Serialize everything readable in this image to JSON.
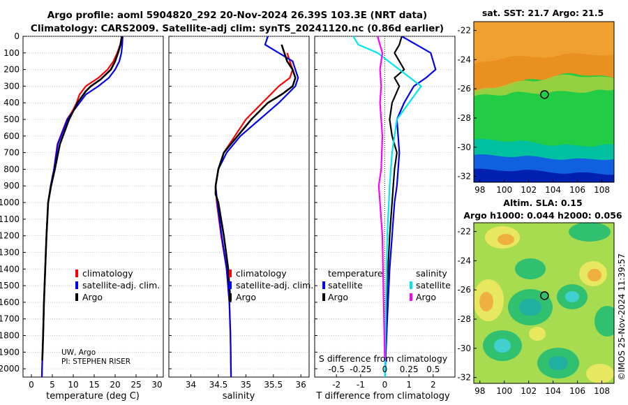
{
  "header": {
    "title_line1": "Argo profile: aoml 5904820_292 20-Nov-2024 26.39S 103.3E (NRT data)",
    "title_line2": "Climatology: CARS2009. Satellite-adj clim: synTS_20241120.nc (0.86d earlier)"
  },
  "depth_axis": {
    "ticks": [
      0,
      100,
      200,
      300,
      400,
      500,
      600,
      700,
      800,
      900,
      1000,
      1100,
      1200,
      1300,
      1400,
      1500,
      1600,
      1700,
      1800,
      1900,
      2000
    ],
    "ylim": [
      0,
      2050
    ]
  },
  "credits": {
    "line1": "UW, Argo",
    "line2": "PI: STEPHEN RISER"
  },
  "chart_data": [
    {
      "type": "line",
      "id": "temperature",
      "xlabel": "temperature (deg C)",
      "xlim": [
        -2,
        31.5
      ],
      "xticks": [
        "0",
        "5",
        "10",
        "15",
        "20",
        "25",
        "30"
      ],
      "xtick_values": [
        0,
        5,
        10,
        15,
        20,
        25,
        30
      ],
      "legend": [
        "climatology",
        "satellite-adj. clim.",
        "Argo"
      ],
      "series": [
        {
          "name": "climatology",
          "color": "#ff0000",
          "x": [
            21.6,
            21.2,
            20.5,
            19.6,
            18.2,
            16.0,
            13.0,
            11.5,
            10.8,
            9.8,
            8.5,
            6.2,
            5.4,
            4.6,
            4.0,
            3.6,
            3.3,
            3.0,
            2.8,
            2.6,
            2.5
          ],
          "depth": [
            0,
            50,
            100,
            150,
            200,
            250,
            300,
            350,
            400,
            450,
            500,
            650,
            800,
            900,
            1000,
            1200,
            1400,
            1600,
            1800,
            1950,
            2050
          ]
        },
        {
          "name": "satellite-adj. clim.",
          "color": "#0000ee",
          "x": [
            21.8,
            21.7,
            21.5,
            21.0,
            20.0,
            18.5,
            16.0,
            13.0,
            11.5,
            10.0,
            8.6,
            6.3,
            5.4,
            4.6,
            4.0,
            3.6,
            3.3,
            3.0,
            2.8,
            2.6,
            2.5
          ],
          "depth": [
            0,
            50,
            100,
            150,
            200,
            250,
            300,
            350,
            400,
            450,
            500,
            650,
            800,
            900,
            1000,
            1200,
            1400,
            1600,
            1800,
            1950,
            2050
          ]
        },
        {
          "name": "Argo",
          "color": "#000000",
          "x": [
            21.6,
            21.3,
            20.7,
            20.0,
            19.0,
            16.5,
            14.2,
            13.0,
            11.0,
            10.0,
            9.0,
            6.8,
            5.6,
            4.7,
            4.0,
            3.6,
            3.3,
            3.0,
            2.8,
            2.6
          ],
          "depth": [
            0,
            50,
            100,
            150,
            200,
            260,
            300,
            330,
            400,
            450,
            500,
            650,
            800,
            900,
            1000,
            1200,
            1400,
            1600,
            1800,
            1950
          ]
        }
      ]
    },
    {
      "type": "line",
      "id": "salinity",
      "xlabel": "salinity",
      "xlim": [
        33.6,
        36.15
      ],
      "xticks": [
        "34",
        "34.5",
        "35",
        "35.5",
        "36"
      ],
      "xtick_values": [
        34,
        34.5,
        35,
        35.5,
        36
      ],
      "legend": [
        "climatology",
        "satellite-adj. clim.",
        "Argo"
      ],
      "series": [
        {
          "name": "climatology",
          "color": "#ff0000",
          "x": [
            35.75,
            35.8,
            35.85,
            35.8,
            35.6,
            35.3,
            35.0,
            34.8,
            34.6,
            34.5,
            34.45,
            34.47,
            34.55,
            34.65,
            34.7,
            34.72,
            34.73
          ],
          "depth": [
            100,
            150,
            200,
            250,
            300,
            400,
            500,
            600,
            700,
            800,
            900,
            1000,
            1200,
            1400,
            1600,
            1800,
            2050
          ]
        },
        {
          "name": "satellite-adj. clim.",
          "color": "#0000ee",
          "x": [
            35.4,
            35.35,
            35.6,
            35.85,
            35.95,
            35.9,
            35.6,
            35.25,
            34.9,
            34.65,
            34.5,
            34.45,
            34.48,
            34.56,
            34.65,
            34.7,
            34.72,
            34.73
          ],
          "depth": [
            0,
            50,
            100,
            150,
            250,
            300,
            400,
            500,
            600,
            700,
            800,
            900,
            1000,
            1200,
            1400,
            1600,
            1800,
            2050
          ]
        },
        {
          "name": "Argo",
          "color": "#000000",
          "x": [
            35.65,
            35.7,
            35.75,
            35.85,
            35.9,
            35.85,
            35.65,
            35.4,
            35.1,
            34.85,
            34.6,
            34.5,
            34.45,
            34.45,
            34.5,
            34.6,
            34.68,
            34.72
          ],
          "depth": [
            50,
            100,
            150,
            200,
            250,
            300,
            350,
            400,
            500,
            600,
            700,
            800,
            900,
            950,
            1000,
            1200,
            1400,
            1600
          ]
        }
      ]
    },
    {
      "type": "line",
      "id": "difference",
      "xlabel": "T difference from climatology",
      "xlabel_top": "S difference from climatology",
      "xlim": [
        -2.9,
        2.9
      ],
      "xticks": [
        "-2",
        "-1",
        "0",
        "1",
        "2"
      ],
      "xtick_values": [
        -2,
        -1,
        0,
        1,
        2
      ],
      "xticks_salinity": [
        "-0.5",
        "-0.25",
        "0",
        "0.25",
        "0.5"
      ],
      "xtick_salinity_values": [
        -0.5,
        -0.25,
        0,
        0.25,
        0.5
      ],
      "legend_temperature_title": "temperature",
      "legend_salinity_title": "salinity",
      "legend_temperature": [
        "satellite",
        "Argo"
      ],
      "legend_salinity": [
        "satellite",
        "Argo"
      ],
      "series": [
        {
          "name": "temperature satellite",
          "color": "#0000ee",
          "x": [
            0.7,
            1.3,
            1.9,
            2.1,
            1.7,
            1.2,
            0.8,
            0.5,
            0.55,
            0.6,
            0.55,
            0.5,
            0.4,
            0.35,
            0.3,
            0.2,
            0.1,
            0.0
          ],
          "depth": [
            0,
            50,
            100,
            200,
            250,
            300,
            400,
            500,
            600,
            700,
            800,
            900,
            1000,
            1100,
            1200,
            1400,
            1700,
            2050
          ]
        },
        {
          "name": "temperature Argo",
          "color": "#000000",
          "x": [
            0.7,
            0.6,
            0.4,
            0.8,
            0.4,
            0.6,
            0.3,
            0.2,
            0.3,
            0.5,
            0.4,
            0.35,
            0.3,
            0.2,
            0.1,
            0.0
          ],
          "depth": [
            0,
            50,
            100,
            200,
            250,
            300,
            400,
            500,
            600,
            700,
            800,
            900,
            1000,
            1200,
            1500,
            1950
          ]
        },
        {
          "name": "salinity satellite",
          "color": "#00e5ee",
          "x": [
            -1.3,
            -1.1,
            -0.3,
            0.6,
            1.5,
            1.0,
            0.5,
            0.3,
            0.2,
            0.1,
            0.05,
            0.0
          ],
          "depth": [
            0,
            50,
            100,
            200,
            300,
            400,
            500,
            700,
            900,
            1200,
            1600,
            2050
          ]
        },
        {
          "name": "salinity Argo",
          "color": "#ff00ff",
          "x": [
            -0.3,
            -0.1,
            -0.2,
            -0.15,
            -0.2,
            -0.1,
            -0.15,
            -0.25,
            -0.2,
            -0.1,
            -0.05,
            0.0
          ],
          "depth": [
            0,
            100,
            200,
            300,
            400,
            600,
            800,
            900,
            1000,
            1200,
            1600,
            1950
          ]
        }
      ]
    }
  ],
  "maps": {
    "sst": {
      "title": "sat. SST: 21.7 Argo: 21.5",
      "yticks": [
        "-22",
        "-24",
        "-26",
        "-28",
        "-30",
        "-32"
      ],
      "ytick_values": [
        -22,
        -24,
        -26,
        -28,
        -30,
        -32
      ],
      "xticks": [
        "98",
        "100",
        "102",
        "104",
        "106",
        "108"
      ],
      "xtick_values": [
        98,
        100,
        102,
        104,
        106,
        108
      ],
      "lon_range": [
        97.5,
        109
      ],
      "lat_range": [
        -32.4,
        -21.4
      ],
      "float_lon": 103.3,
      "float_lat": -26.39,
      "colors": {
        "warm": "#f0a030",
        "orange": "#e89020",
        "green": "#22cc44",
        "teal": "#00c0a0",
        "blue": "#1060e0",
        "navy": "#0020b0"
      }
    },
    "sla": {
      "title_line1": "Altim. SLA: 0.15",
      "title_line2": "Argo h1000: 0.044 h2000: 0.056",
      "yticks": [
        "-22",
        "-24",
        "-26",
        "-28",
        "-30",
        "-32"
      ],
      "ytick_values": [
        -22,
        -24,
        -26,
        -28,
        -30,
        -32
      ],
      "xticks": [
        "98",
        "100",
        "102",
        "104",
        "106",
        "108"
      ],
      "xtick_values": [
        98,
        100,
        102,
        104,
        106,
        108
      ],
      "lon_range": [
        97.5,
        109
      ],
      "lat_range": [
        -32.4,
        -21.4
      ],
      "float_lon": 103.3,
      "float_lat": -26.39,
      "colors": {
        "base": "#a8dc50",
        "yellow": "#e8e860",
        "orange": "#f0b040",
        "green": "#30c070",
        "teal": "#20b0a0",
        "cyan": "#40d0d0"
      }
    }
  },
  "watermark": "©IMOS 25-Nov-2024 11:39:57"
}
